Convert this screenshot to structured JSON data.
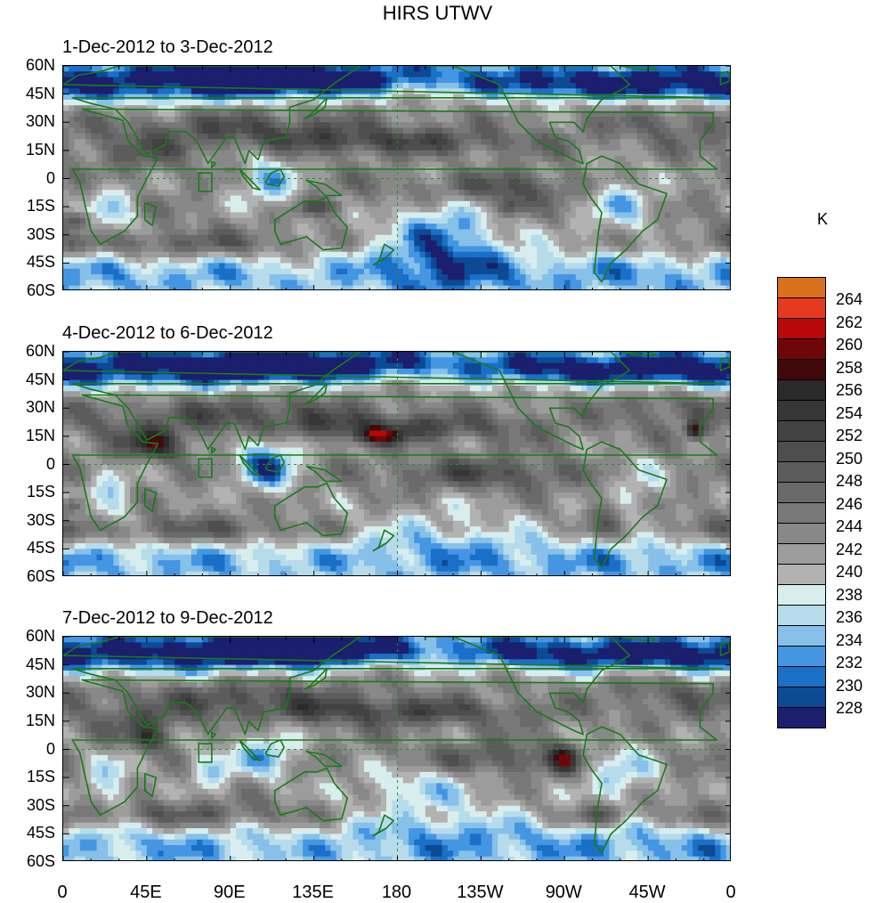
{
  "title": "HIRS UTWV",
  "unit": "K",
  "colors": {
    "coast": "#1a7a1a",
    "grid": "#2e8b2e",
    "levels": [
      "#1b1f6e",
      "#0d4a94",
      "#1a6fc6",
      "#4596e2",
      "#87c0e8",
      "#b6dcec",
      "#d8eeee",
      "#b2b2b2",
      "#9c9c9c",
      "#888888",
      "#787878",
      "#6a6a6a",
      "#5c5c5c",
      "#4e4e4e",
      "#424242",
      "#363636",
      "#2a2a2a",
      "#400a0a",
      "#6e0808",
      "#b80808",
      "#e53a1e",
      "#d9701e"
    ]
  },
  "chart_data": {
    "type": "heatmap",
    "title": "HIRS UTWV",
    "colorbar": {
      "label": "K",
      "ticks": [
        228,
        230,
        232,
        234,
        236,
        238,
        240,
        242,
        244,
        246,
        248,
        250,
        252,
        254,
        256,
        258,
        260,
        262,
        264
      ],
      "min": 226,
      "max": 266
    },
    "x_ticks": [
      "0",
      "45E",
      "90E",
      "135E",
      "180",
      "135W",
      "90W",
      "45W",
      "0"
    ],
    "y_ticks": [
      "60N",
      "45N",
      "30N",
      "15N",
      "0",
      "15S",
      "30S",
      "45S",
      "60S"
    ],
    "xlim": [
      0,
      360
    ],
    "ylim": [
      -60,
      60
    ],
    "panels": [
      {
        "title": "1-Dec-2012 to 3-Dec-2012"
      },
      {
        "title": "4-Dec-2012 to 6-Dec-2012"
      },
      {
        "title": "7-Dec-2012 to 9-Dec-2012"
      }
    ]
  }
}
